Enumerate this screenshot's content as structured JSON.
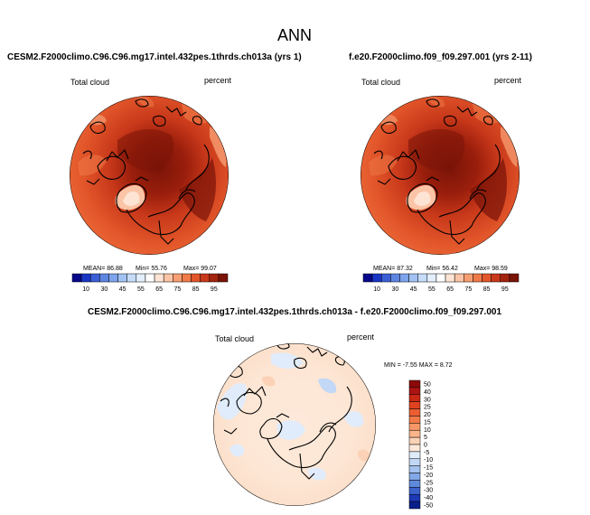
{
  "figure": {
    "title": "ANN"
  },
  "chart_data": [
    {
      "type": "heatmap",
      "projection": "north-polar-stereographic",
      "title": "CESM2.F2000climo.C96.C96.mg17.intel.432pes.1thrds.ch013a (yrs 1)",
      "field_label": "Total cloud",
      "units": "percent",
      "stats": {
        "mean_label": "MEAN=",
        "mean": "86.88",
        "min_label": "Min=",
        "min": "55.76",
        "max_label": "Max=",
        "max": "99.07"
      },
      "colorbar": {
        "orientation": "horizontal",
        "labels": [
          "10",
          "30",
          "45",
          "55",
          "65",
          "75",
          "85",
          "95"
        ],
        "colors": [
          "#08088a",
          "#1a36c4",
          "#3a5fd6",
          "#5d86e3",
          "#7da4ec",
          "#a2c2f3",
          "#c6dcf8",
          "#e3eefc",
          "#ffffff",
          "#fde4d4",
          "#fbc4a6",
          "#f79e73",
          "#f07a48",
          "#e2562a",
          "#c8381a",
          "#a3240e",
          "#7a1408"
        ]
      },
      "scale_range": [
        10,
        95
      ]
    },
    {
      "type": "heatmap",
      "projection": "north-polar-stereographic",
      "title": "f.e20.F2000climo.f09_f09.297.001 (yrs 2-11)",
      "field_label": "Total cloud",
      "units": "percent",
      "stats": {
        "mean_label": "MEAN=",
        "mean": "87.32",
        "min_label": "Min=",
        "min": "56.42",
        "max_label": "Max=",
        "max": "98.59"
      },
      "colorbar": {
        "orientation": "horizontal",
        "labels": [
          "10",
          "30",
          "45",
          "55",
          "65",
          "75",
          "85",
          "95"
        ],
        "colors": [
          "#08088a",
          "#1a36c4",
          "#3a5fd6",
          "#5d86e3",
          "#7da4ec",
          "#a2c2f3",
          "#c6dcf8",
          "#e3eefc",
          "#ffffff",
          "#fde4d4",
          "#fbc4a6",
          "#f79e73",
          "#f07a48",
          "#e2562a",
          "#c8381a",
          "#a3240e",
          "#7a1408"
        ]
      },
      "scale_range": [
        10,
        95
      ]
    },
    {
      "type": "heatmap",
      "projection": "north-polar-stereographic",
      "title": "CESM2.F2000climo.C96.C96.mg17.intel.432pes.1thrds.ch013a - f.e20.F2000climo.f09_f09.297.001",
      "field_label": "Total cloud",
      "units": "percent",
      "stats": {
        "min_label": "MIN =",
        "min": "-7.55",
        "max_label": "MAX =",
        "max": "8.72"
      },
      "colorbar": {
        "orientation": "vertical",
        "labels": [
          "50",
          "40",
          "30",
          "25",
          "20",
          "15",
          "10",
          "5",
          "0",
          "-5",
          "-10",
          "-15",
          "-20",
          "-25",
          "-30",
          "-40",
          "-50"
        ],
        "colors": [
          "#8c0a0a",
          "#ad1414",
          "#c92814",
          "#e04220",
          "#ec5e32",
          "#f37a48",
          "#f79866",
          "#fab58a",
          "#fcd2b6",
          "#fde9da",
          "#e0ecfb",
          "#c2d8f6",
          "#a3c2ef",
          "#82a8e7",
          "#5f8adc",
          "#3c63cc",
          "#1c38b4",
          "#0a1e8c"
        ]
      },
      "scale_range": [
        -50,
        50
      ]
    }
  ]
}
